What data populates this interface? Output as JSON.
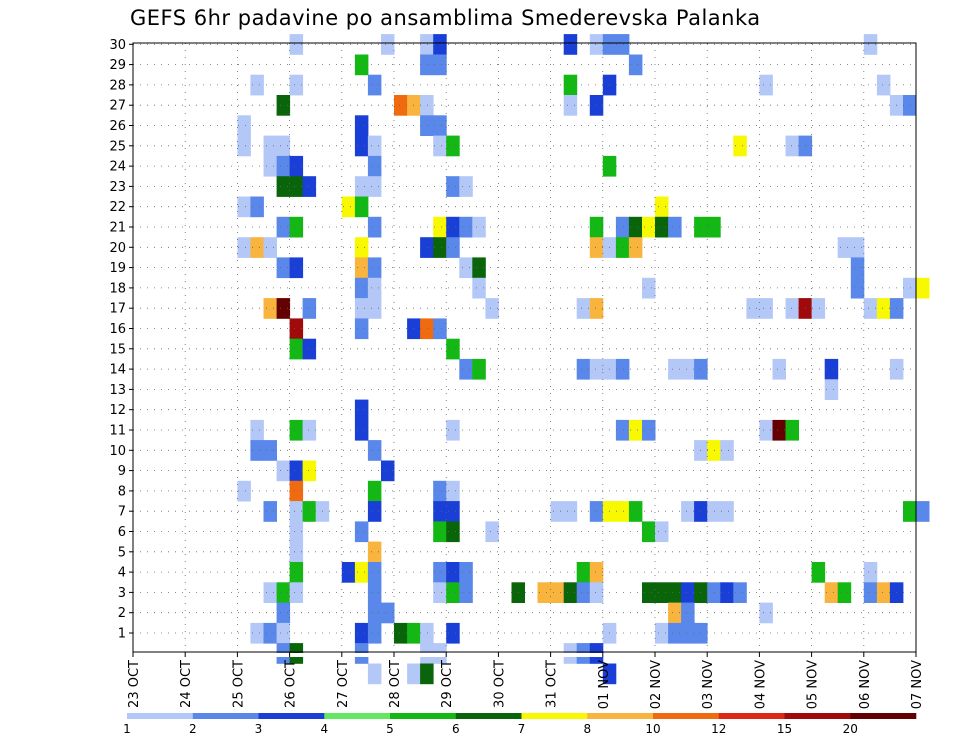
{
  "chart_data": {
    "type": "heatmap",
    "title": "GEFS 6hr padavine po ansamblima Smederevska Palanka",
    "y_labels": [
      "1",
      "2",
      "3",
      "4",
      "5",
      "6",
      "7",
      "8",
      "9",
      "10",
      "11",
      "12",
      "13",
      "14",
      "15",
      "16",
      "17",
      "18",
      "19",
      "20",
      "21",
      "22",
      "23",
      "24",
      "25",
      "26",
      "27",
      "28",
      "29",
      "30"
    ],
    "x_labels": [
      "23 OCT",
      "24 OCT",
      "25 OCT",
      "26 OCT",
      "27 OCT",
      "28 OCT",
      "29 OCT",
      "30 OCT",
      "31 OCT",
      "01 NOV",
      "02 NOV",
      "03 NOV",
      "04 NOV",
      "05 NOV",
      "06 NOV",
      "07 NOV"
    ],
    "x_unit": "6-hour steps (4 per day)",
    "grid": true,
    "legend_placement": "bottom",
    "legend": {
      "labels": [
        "1",
        "2",
        "3",
        "4",
        "5",
        "6",
        "7",
        "8",
        "10",
        "12",
        "15",
        "20"
      ],
      "colors": [
        "#b4c8f8",
        "#5a87ea",
        "#1a3fd6",
        "#64e862",
        "#14b814",
        "#0a640a",
        "#f8f800",
        "#f8b43c",
        "#f06a10",
        "#dc2814",
        "#a00a0a",
        "#640000"
      ]
    },
    "cells": [
      [
        12,
        30,
        1
      ],
      [
        19,
        30,
        1
      ],
      [
        22,
        30,
        1
      ],
      [
        23,
        30,
        3
      ],
      [
        33,
        30,
        3
      ],
      [
        35,
        30,
        1
      ],
      [
        36,
        30,
        2
      ],
      [
        37,
        30,
        2
      ],
      [
        56,
        30,
        1
      ],
      [
        17,
        29,
        5
      ],
      [
        22,
        29,
        2
      ],
      [
        23,
        29,
        2
      ],
      [
        38,
        29,
        2
      ],
      [
        9,
        28,
        1
      ],
      [
        12,
        28,
        1
      ],
      [
        18,
        28,
        2
      ],
      [
        33,
        28,
        5
      ],
      [
        36,
        28,
        3
      ],
      [
        48,
        28,
        1
      ],
      [
        57,
        28,
        1
      ],
      [
        11,
        27,
        6
      ],
      [
        20,
        27,
        10
      ],
      [
        21,
        27,
        8
      ],
      [
        22,
        27,
        1
      ],
      [
        33,
        27,
        1
      ],
      [
        35,
        27,
        3
      ],
      [
        58,
        27,
        1
      ],
      [
        59,
        27,
        2
      ],
      [
        8,
        26,
        1
      ],
      [
        17,
        26,
        3
      ],
      [
        22,
        26,
        2
      ],
      [
        23,
        26,
        2
      ],
      [
        8,
        25,
        1
      ],
      [
        10,
        25,
        1
      ],
      [
        11,
        25,
        1
      ],
      [
        17,
        25,
        3
      ],
      [
        18,
        25,
        1
      ],
      [
        23,
        25,
        1
      ],
      [
        24,
        25,
        5
      ],
      [
        46,
        25,
        7
      ],
      [
        50,
        25,
        1
      ],
      [
        51,
        25,
        2
      ],
      [
        10,
        24,
        1
      ],
      [
        11,
        24,
        2
      ],
      [
        12,
        24,
        3
      ],
      [
        18,
        24,
        2
      ],
      [
        36,
        24,
        5
      ],
      [
        11,
        23,
        6
      ],
      [
        12,
        23,
        6
      ],
      [
        13,
        23,
        3
      ],
      [
        17,
        23,
        1
      ],
      [
        18,
        23,
        1
      ],
      [
        24,
        23,
        2
      ],
      [
        25,
        23,
        1
      ],
      [
        8,
        22,
        1
      ],
      [
        9,
        22,
        2
      ],
      [
        16,
        22,
        7
      ],
      [
        17,
        22,
        5
      ],
      [
        40,
        22,
        7
      ],
      [
        11,
        21,
        2
      ],
      [
        12,
        21,
        5
      ],
      [
        18,
        21,
        2
      ],
      [
        23,
        21,
        7
      ],
      [
        24,
        21,
        3
      ],
      [
        25,
        21,
        2
      ],
      [
        26,
        21,
        1
      ],
      [
        35,
        21,
        5
      ],
      [
        37,
        21,
        2
      ],
      [
        38,
        21,
        6
      ],
      [
        39,
        21,
        7
      ],
      [
        40,
        21,
        6
      ],
      [
        41,
        21,
        2
      ],
      [
        43,
        21,
        5
      ],
      [
        44,
        21,
        5
      ],
      [
        8,
        20,
        1
      ],
      [
        9,
        20,
        8
      ],
      [
        10,
        20,
        1
      ],
      [
        17,
        20,
        7
      ],
      [
        22,
        20,
        3
      ],
      [
        23,
        20,
        6
      ],
      [
        24,
        20,
        2
      ],
      [
        35,
        20,
        8
      ],
      [
        36,
        20,
        1
      ],
      [
        37,
        20,
        5
      ],
      [
        38,
        20,
        8
      ],
      [
        54,
        20,
        1
      ],
      [
        55,
        20,
        1
      ],
      [
        11,
        19,
        2
      ],
      [
        12,
        19,
        3
      ],
      [
        17,
        19,
        8
      ],
      [
        18,
        19,
        2
      ],
      [
        25,
        19,
        1
      ],
      [
        26,
        19,
        6
      ],
      [
        55,
        19,
        2
      ],
      [
        17,
        18,
        2
      ],
      [
        18,
        18,
        1
      ],
      [
        26,
        18,
        1
      ],
      [
        39,
        18,
        1
      ],
      [
        55,
        18,
        2
      ],
      [
        59,
        18,
        1
      ],
      [
        60,
        18,
        7
      ],
      [
        10,
        17,
        8
      ],
      [
        11,
        17,
        20
      ],
      [
        13,
        17,
        2
      ],
      [
        17,
        17,
        1
      ],
      [
        18,
        17,
        1
      ],
      [
        27,
        17,
        1
      ],
      [
        34,
        17,
        1
      ],
      [
        35,
        17,
        8
      ],
      [
        47,
        17,
        1
      ],
      [
        48,
        17,
        1
      ],
      [
        50,
        17,
        1
      ],
      [
        51,
        17,
        15
      ],
      [
        52,
        17,
        1
      ],
      [
        56,
        17,
        1
      ],
      [
        57,
        17,
        7
      ],
      [
        58,
        17,
        2
      ],
      [
        12,
        16,
        15
      ],
      [
        17,
        16,
        2
      ],
      [
        21,
        16,
        3
      ],
      [
        22,
        16,
        10
      ],
      [
        23,
        16,
        2
      ],
      [
        12,
        15,
        5
      ],
      [
        13,
        15,
        3
      ],
      [
        24,
        15,
        5
      ],
      [
        25,
        14,
        2
      ],
      [
        26,
        14,
        5
      ],
      [
        34,
        14,
        2
      ],
      [
        35,
        14,
        1
      ],
      [
        36,
        14,
        1
      ],
      [
        37,
        14,
        2
      ],
      [
        41,
        14,
        1
      ],
      [
        42,
        14,
        1
      ],
      [
        43,
        14,
        2
      ],
      [
        49,
        14,
        1
      ],
      [
        53,
        14,
        3
      ],
      [
        58,
        14,
        1
      ],
      [
        53,
        13,
        1
      ],
      [
        17,
        12,
        3
      ],
      [
        9,
        11,
        1
      ],
      [
        12,
        11,
        5
      ],
      [
        13,
        11,
        1
      ],
      [
        17,
        11,
        3
      ],
      [
        24,
        11,
        1
      ],
      [
        37,
        11,
        2
      ],
      [
        38,
        11,
        7
      ],
      [
        39,
        11,
        2
      ],
      [
        48,
        11,
        1
      ],
      [
        49,
        11,
        20
      ],
      [
        50,
        11,
        5
      ],
      [
        9,
        10,
        2
      ],
      [
        10,
        10,
        2
      ],
      [
        18,
        10,
        2
      ],
      [
        43,
        10,
        1
      ],
      [
        44,
        10,
        7
      ],
      [
        45,
        10,
        1
      ],
      [
        11,
        9,
        1
      ],
      [
        12,
        9,
        3
      ],
      [
        13,
        9,
        7
      ],
      [
        19,
        9,
        3
      ],
      [
        8,
        8,
        1
      ],
      [
        12,
        8,
        10
      ],
      [
        18,
        8,
        5
      ],
      [
        23,
        8,
        2
      ],
      [
        24,
        8,
        1
      ],
      [
        10,
        7,
        2
      ],
      [
        12,
        7,
        1
      ],
      [
        13,
        7,
        5
      ],
      [
        14,
        7,
        1
      ],
      [
        18,
        7,
        3
      ],
      [
        23,
        7,
        3
      ],
      [
        24,
        7,
        3
      ],
      [
        32,
        7,
        1
      ],
      [
        33,
        7,
        1
      ],
      [
        35,
        7,
        2
      ],
      [
        36,
        7,
        7
      ],
      [
        37,
        7,
        7
      ],
      [
        38,
        7,
        5
      ],
      [
        42,
        7,
        1
      ],
      [
        43,
        7,
        3
      ],
      [
        44,
        7,
        1
      ],
      [
        45,
        7,
        1
      ],
      [
        59,
        7,
        5
      ],
      [
        60,
        7,
        2
      ],
      [
        12,
        6,
        1
      ],
      [
        17,
        6,
        2
      ],
      [
        23,
        6,
        5
      ],
      [
        24,
        6,
        6
      ],
      [
        27,
        6,
        1
      ],
      [
        39,
        6,
        5
      ],
      [
        40,
        6,
        1
      ],
      [
        12,
        5,
        1
      ],
      [
        18,
        5,
        8
      ],
      [
        12,
        4,
        5
      ],
      [
        16,
        4,
        3
      ],
      [
        17,
        4,
        7
      ],
      [
        18,
        4,
        2
      ],
      [
        23,
        4,
        2
      ],
      [
        24,
        4,
        3
      ],
      [
        25,
        4,
        2
      ],
      [
        34,
        4,
        5
      ],
      [
        35,
        4,
        8
      ],
      [
        52,
        4,
        5
      ],
      [
        56,
        4,
        1
      ],
      [
        10,
        3,
        1
      ],
      [
        11,
        3,
        5
      ],
      [
        12,
        3,
        1
      ],
      [
        18,
        3,
        2
      ],
      [
        23,
        3,
        1
      ],
      [
        24,
        3,
        5
      ],
      [
        25,
        3,
        2
      ],
      [
        29,
        3,
        6
      ],
      [
        31,
        3,
        8
      ],
      [
        32,
        3,
        8
      ],
      [
        33,
        3,
        6
      ],
      [
        34,
        3,
        2
      ],
      [
        35,
        3,
        1
      ],
      [
        39,
        3,
        6
      ],
      [
        40,
        3,
        6
      ],
      [
        41,
        3,
        6
      ],
      [
        42,
        3,
        3
      ],
      [
        43,
        3,
        6
      ],
      [
        44,
        3,
        2
      ],
      [
        45,
        3,
        3
      ],
      [
        46,
        3,
        2
      ],
      [
        53,
        3,
        8
      ],
      [
        54,
        3,
        5
      ],
      [
        56,
        3,
        2
      ],
      [
        57,
        3,
        8
      ],
      [
        58,
        3,
        3
      ],
      [
        11,
        2,
        2
      ],
      [
        18,
        2,
        2
      ],
      [
        19,
        2,
        2
      ],
      [
        41,
        2,
        8
      ],
      [
        42,
        2,
        2
      ],
      [
        48,
        2,
        1
      ],
      [
        9,
        1,
        1
      ],
      [
        10,
        1,
        2
      ],
      [
        11,
        1,
        1
      ],
      [
        17,
        1,
        3
      ],
      [
        18,
        1,
        2
      ],
      [
        20,
        1,
        6
      ],
      [
        21,
        1,
        5
      ],
      [
        22,
        1,
        1
      ],
      [
        24,
        1,
        3
      ],
      [
        36,
        1,
        1
      ],
      [
        40,
        1,
        1
      ],
      [
        41,
        1,
        2
      ],
      [
        42,
        1,
        2
      ],
      [
        43,
        1,
        2
      ],
      [
        11,
        0,
        2
      ],
      [
        12,
        0,
        6
      ],
      [
        17,
        0,
        2
      ],
      [
        22,
        0,
        1
      ],
      [
        23,
        0,
        1
      ],
      [
        33,
        0,
        1
      ],
      [
        34,
        0,
        2
      ],
      [
        35,
        0,
        3
      ],
      [
        18,
        -1,
        1
      ],
      [
        21,
        -1,
        1
      ],
      [
        22,
        -1,
        6
      ],
      [
        36,
        -1,
        3
      ]
    ]
  }
}
